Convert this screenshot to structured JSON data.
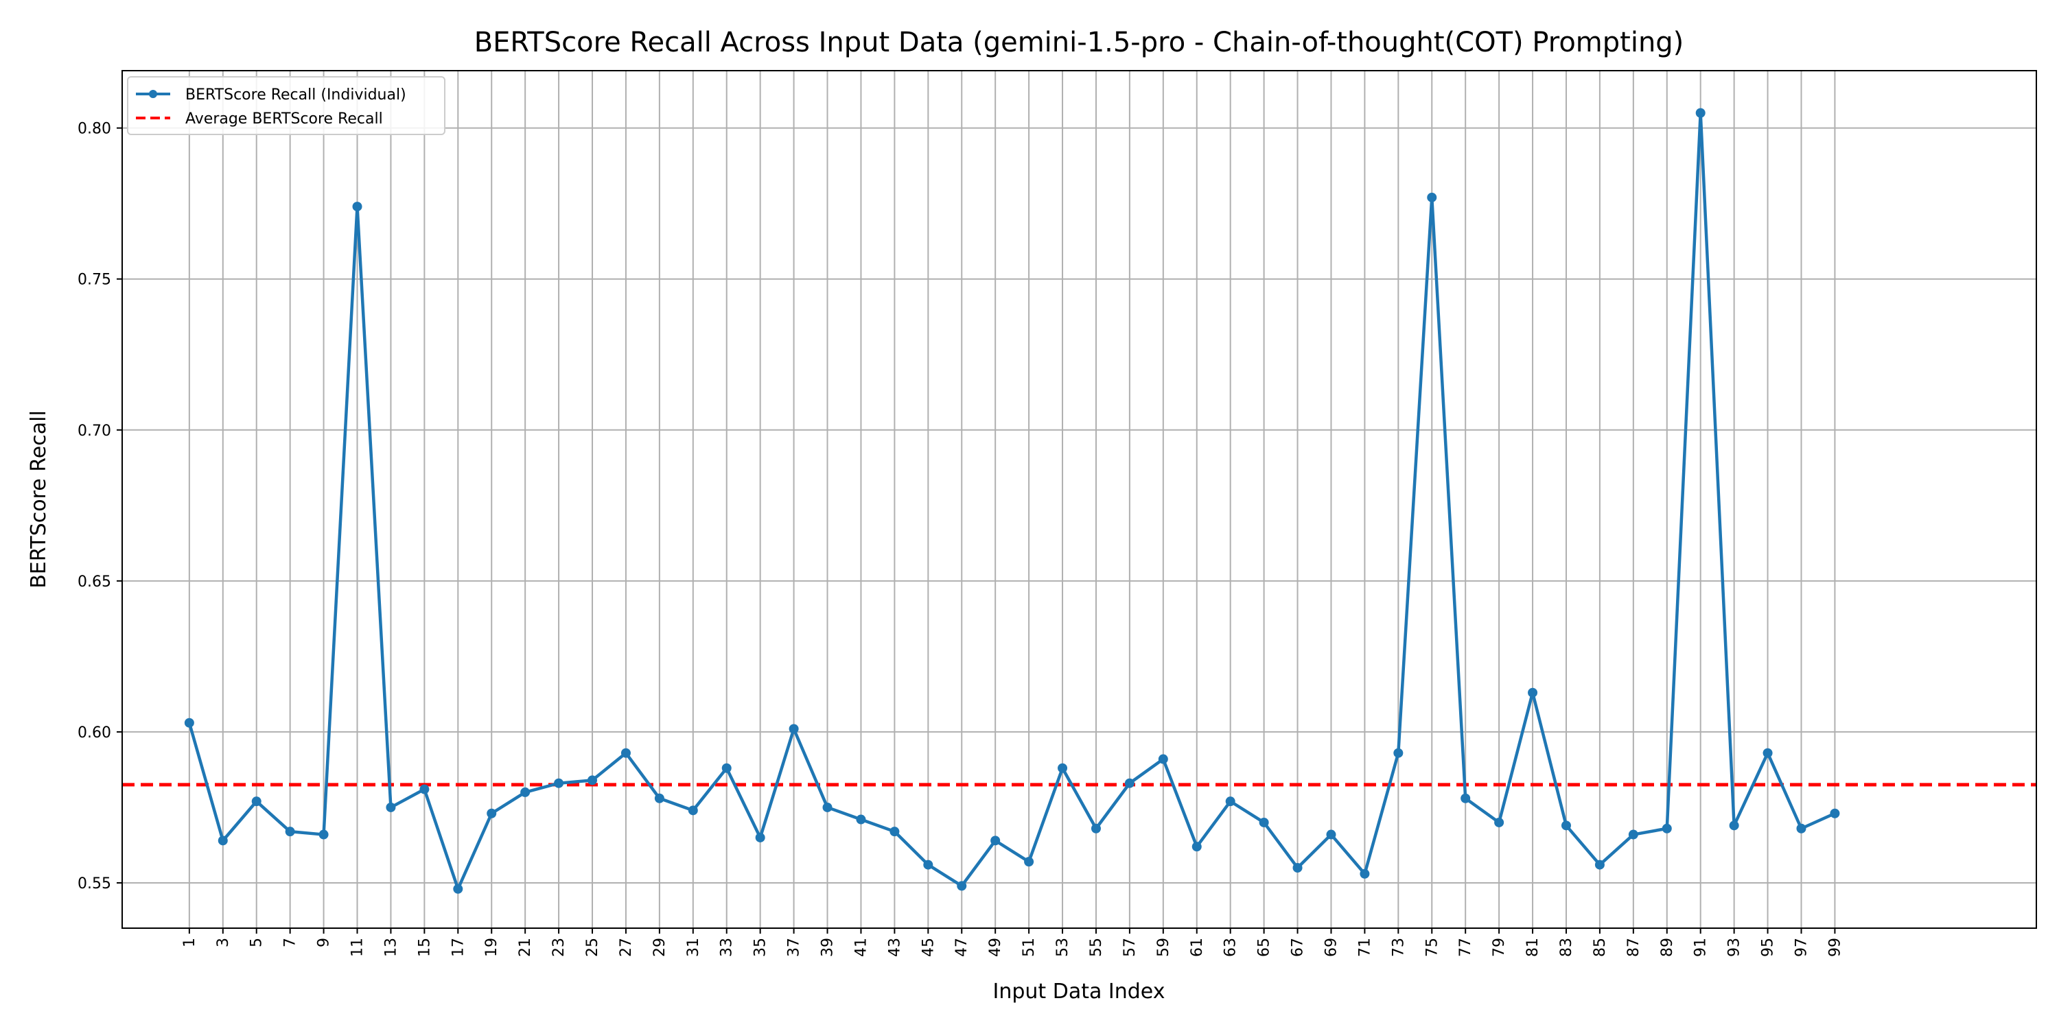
{
  "chart_data": {
    "type": "line",
    "title": "BERTScore Recall Across Input Data (gemini-1.5-pro - Chain-of-thought(COT) Prompting)",
    "xlabel": "Input Data Index",
    "ylabel": "BERTScore Recall",
    "xlim": [
      -3,
      111
    ],
    "ylim": [
      0.535,
      0.819
    ],
    "x_ticks": [
      1,
      3,
      5,
      7,
      9,
      11,
      13,
      15,
      17,
      19,
      21,
      23,
      25,
      27,
      29,
      31,
      33,
      35,
      37,
      39,
      41,
      43,
      45,
      47,
      49,
      51,
      53,
      55,
      57,
      59,
      61,
      63,
      65,
      67,
      69,
      71,
      73,
      75,
      77,
      79,
      81,
      83,
      85,
      87,
      89,
      91,
      93,
      95,
      97,
      99
    ],
    "y_ticks": [
      0.55,
      0.6,
      0.65,
      0.7,
      0.75,
      0.8
    ],
    "y_tick_labels": [
      "0.55",
      "0.60",
      "0.65",
      "0.70",
      "0.75",
      "0.80"
    ],
    "grid": true,
    "legend_position": "top-left",
    "series": [
      {
        "name": "BERTScore Recall (Individual)",
        "color": "#1f77b4",
        "marker": "circle",
        "x": [
          1,
          3,
          5,
          7,
          9,
          11,
          13,
          15,
          17,
          19,
          21,
          23,
          25,
          27,
          29,
          31,
          33,
          35,
          37,
          39,
          41,
          43,
          45,
          47,
          49,
          51,
          53,
          55,
          57,
          59,
          61,
          63,
          65,
          67,
          69,
          71,
          73,
          75,
          77,
          79,
          81,
          83,
          85,
          87,
          89,
          91,
          93,
          95,
          97,
          99
        ],
        "values": [
          0.603,
          0.564,
          0.577,
          0.567,
          0.566,
          0.774,
          0.575,
          0.581,
          0.548,
          0.573,
          0.58,
          0.583,
          0.584,
          0.593,
          0.578,
          0.574,
          0.588,
          0.565,
          0.601,
          0.575,
          0.571,
          0.567,
          0.556,
          0.549,
          0.564,
          0.557,
          0.588,
          0.568,
          0.583,
          0.591,
          0.562,
          0.577,
          0.57,
          0.555,
          0.566,
          0.553,
          0.593,
          0.777,
          0.578,
          0.57,
          0.613,
          0.569,
          0.556,
          0.566,
          0.568,
          0.805,
          0.569,
          0.593,
          0.568,
          0.573
        ]
      },
      {
        "name": "Average BERTScore Recall",
        "color": "#ff0000",
        "style": "dashed",
        "value": 0.5825
      }
    ]
  }
}
